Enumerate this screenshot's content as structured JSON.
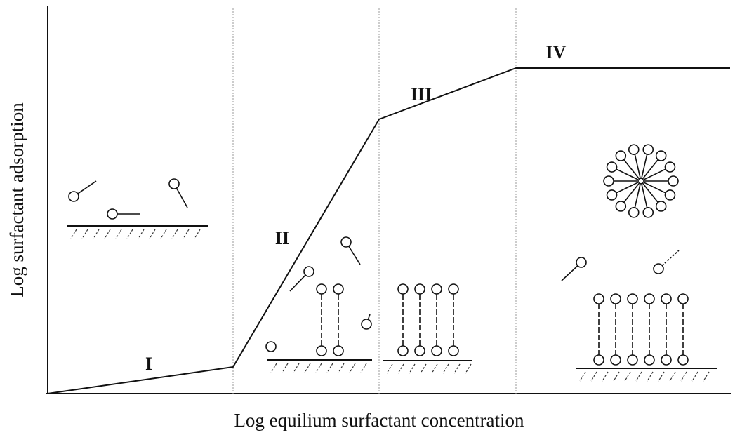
{
  "axes": {
    "x_label": "Log equilium surfactant concentration",
    "y_label": "Log surfactant adsorption"
  },
  "regions": [
    {
      "label": "I"
    },
    {
      "label": "II"
    },
    {
      "label": "III"
    },
    {
      "label": "IV"
    }
  ]
}
